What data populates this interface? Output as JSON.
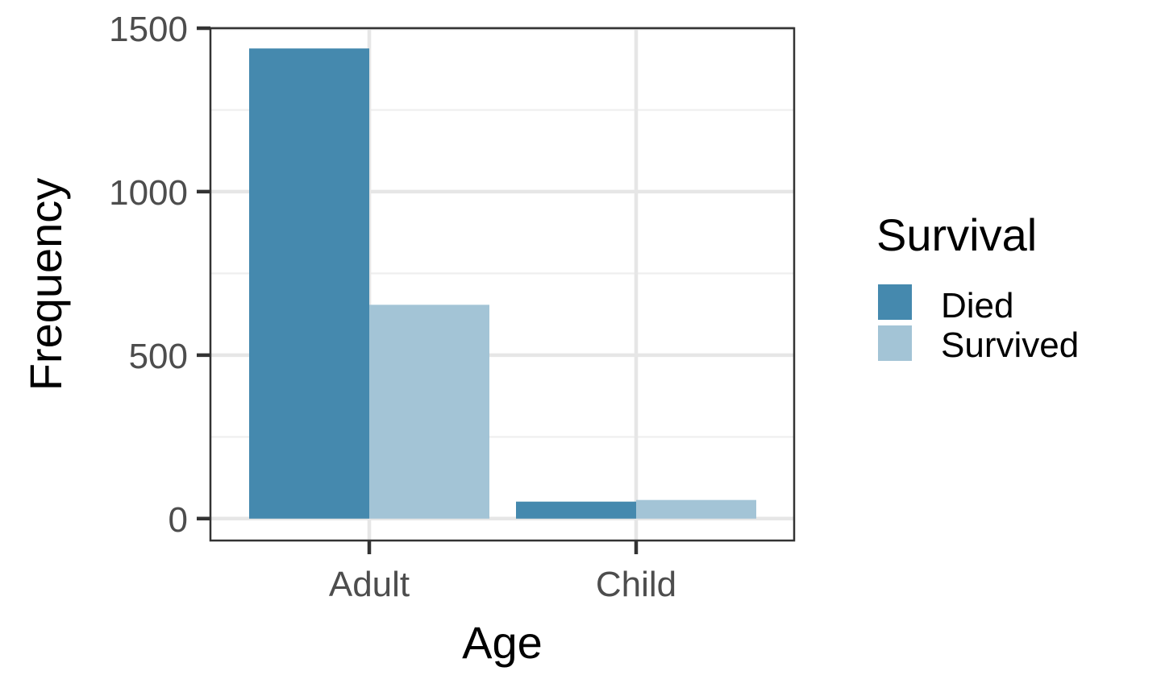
{
  "chart_data": {
    "type": "bar",
    "xlabel": "Age",
    "ylabel": "Frequency",
    "categories": [
      "Adult",
      "Child"
    ],
    "series": [
      {
        "name": "Died",
        "values": [
          1438,
          52
        ]
      },
      {
        "name": "Survived",
        "values": [
          654,
          57
        ]
      }
    ],
    "ylim": [
      -67,
      1500
    ],
    "yticks": [
      0,
      500,
      1000,
      1500
    ],
    "ytick_labels": [
      "0",
      "500",
      "1000",
      "1500"
    ],
    "grid": true,
    "legend": {
      "title": "Survival",
      "placement": "right",
      "entries": [
        "Died",
        "Survived"
      ]
    },
    "colors": {
      "Died": "#4589ae",
      "Survived": "#a3c4d6",
      "grid_major": "#e6e6e6",
      "grid_minor": "#efefef",
      "panel_border": "#333333"
    }
  }
}
